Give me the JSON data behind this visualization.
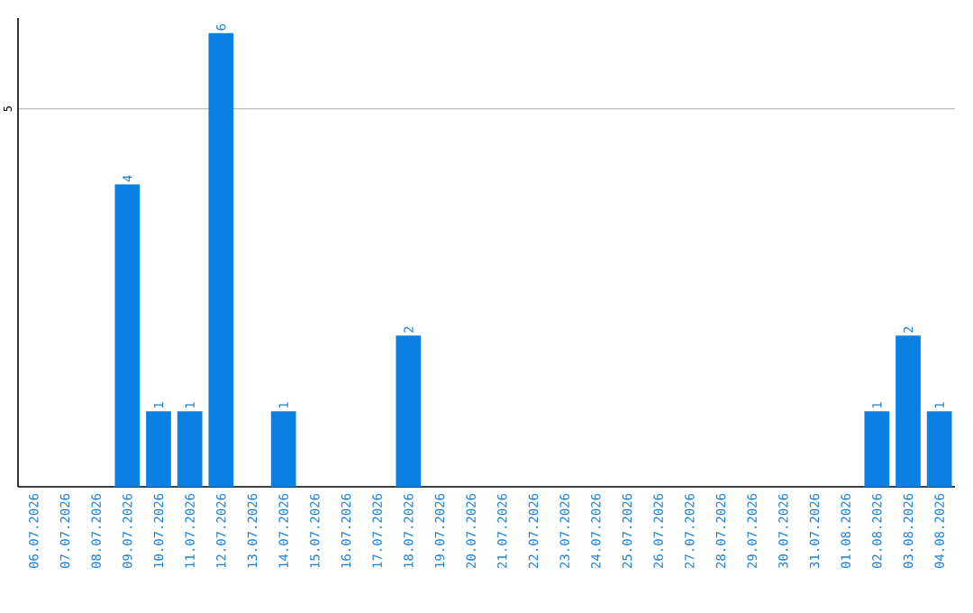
{
  "chart_data": {
    "type": "bar",
    "categories": [
      "06.07.2026",
      "07.07.2026",
      "08.07.2026",
      "09.07.2026",
      "10.07.2026",
      "11.07.2026",
      "12.07.2026",
      "13.07.2026",
      "14.07.2026",
      "15.07.2026",
      "16.07.2026",
      "17.07.2026",
      "18.07.2026",
      "19.07.2026",
      "20.07.2026",
      "21.07.2026",
      "22.07.2026",
      "23.07.2026",
      "24.07.2026",
      "25.07.2026",
      "26.07.2026",
      "27.07.2026",
      "28.07.2026",
      "29.07.2026",
      "30.07.2026",
      "31.07.2026",
      "01.08.2026",
      "02.08.2026",
      "03.08.2026",
      "04.08.2026"
    ],
    "values": [
      0,
      0,
      0,
      4,
      1,
      1,
      6,
      0,
      1,
      0,
      0,
      0,
      2,
      0,
      0,
      0,
      0,
      0,
      0,
      0,
      0,
      0,
      0,
      0,
      0,
      0,
      0,
      1,
      2,
      1
    ],
    "value_labels": [
      null,
      null,
      null,
      "4",
      "1",
      "1",
      "6",
      null,
      "1",
      null,
      null,
      null,
      "2",
      null,
      null,
      null,
      null,
      null,
      null,
      null,
      null,
      null,
      null,
      null,
      null,
      null,
      null,
      "1",
      "2",
      "1"
    ],
    "color": "#0a7fe4",
    "ylim": [
      0,
      6.2
    ],
    "yticks": [
      5
    ],
    "grid": "y"
  }
}
